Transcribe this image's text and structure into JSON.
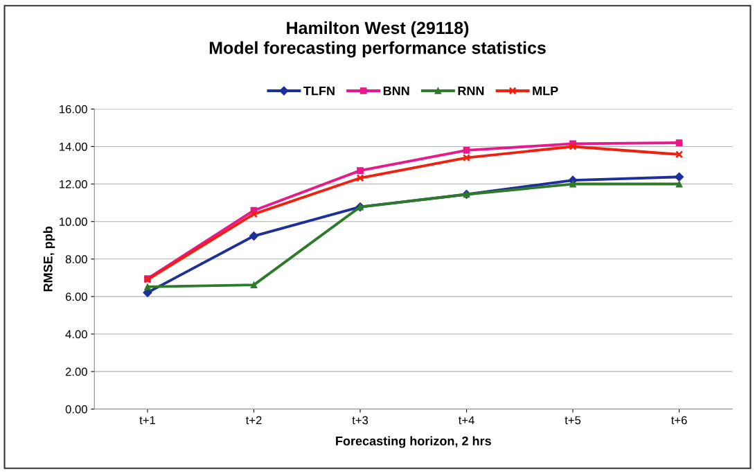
{
  "chart_data": {
    "type": "line",
    "title": "Hamilton West (29118)\nModel forecasting performance statistics",
    "xlabel": "Forecasting horizon, 2 hrs",
    "ylabel": "RMSE, ppb",
    "categories": [
      "t+1",
      "t+2",
      "t+3",
      "t+4",
      "t+5",
      "t+6"
    ],
    "series": [
      {
        "name": "TLFN",
        "color": "#1f2f9a",
        "marker": "diamond",
        "values": [
          6.21,
          9.23,
          10.78,
          11.45,
          12.2,
          12.38
        ]
      },
      {
        "name": "BNN",
        "color": "#e8198b",
        "marker": "square",
        "values": [
          6.95,
          10.59,
          12.72,
          13.8,
          14.15,
          14.2
        ]
      },
      {
        "name": "RNN",
        "color": "#2e7a2a",
        "marker": "triangle",
        "values": [
          6.52,
          6.62,
          10.78,
          11.45,
          12.0,
          12.0
        ]
      },
      {
        "name": "MLP",
        "color": "#f0200f",
        "marker": "cross",
        "values": [
          6.9,
          10.4,
          12.32,
          13.4,
          14.0,
          13.58
        ]
      }
    ],
    "ylim": [
      0,
      16
    ],
    "yticks": [
      {
        "value": 0,
        "label": "0.00"
      },
      {
        "value": 2,
        "label": "2.00"
      },
      {
        "value": 4,
        "label": "4.00"
      },
      {
        "value": 6,
        "label": "6.00"
      },
      {
        "value": 8,
        "label": "8.00"
      },
      {
        "value": 10,
        "label": "10.00"
      },
      {
        "value": 12,
        "label": "12.00"
      },
      {
        "value": 14,
        "label": "14.00"
      },
      {
        "value": 16,
        "label": "16.00"
      }
    ],
    "grid": "y",
    "legend": "top",
    "line_style": "solid"
  }
}
